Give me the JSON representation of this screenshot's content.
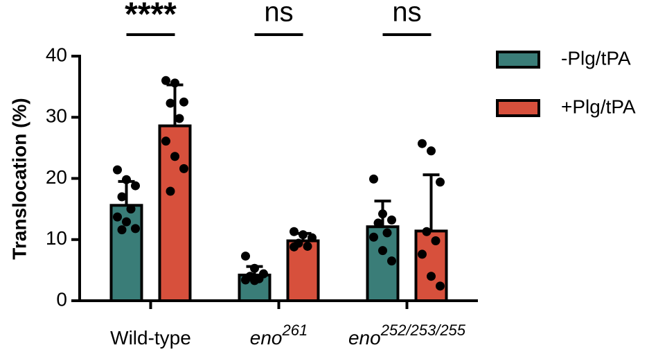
{
  "chart_data": {
    "type": "bar",
    "y_label": "Translocation (%)",
    "categories": [
      {
        "text": "Wild-type"
      },
      {
        "text": "eno",
        "sup": "261"
      },
      {
        "text": "eno",
        "sup": "252/253/255"
      }
    ],
    "significance": [
      "****",
      "ns",
      "ns"
    ],
    "series": [
      {
        "name": "-Plg/tPA",
        "color": "#3a7d78",
        "values": [
          15.6,
          4.2,
          12.1
        ],
        "errors": [
          3.9,
          1.4,
          4.2
        ],
        "points": [
          [
            21.4,
            19.8,
            18.8,
            17.0,
            15.0,
            13.7,
            12.9,
            11.8,
            11.6
          ],
          [
            7.3,
            5.3,
            4.4,
            4.0,
            3.6,
            3.4,
            3.3
          ],
          [
            19.9,
            14.2,
            13.2,
            12.7,
            11.1,
            10.4,
            8.2,
            6.5
          ]
        ]
      },
      {
        "name": "+Plg/tPA",
        "color": "#d7503c",
        "values": [
          28.6,
          9.8,
          11.4
        ],
        "errors": [
          6.7,
          1.2,
          9.2
        ],
        "points": [
          [
            36.0,
            35.6,
            32.5,
            32.3,
            29.8,
            26.1,
            23.6,
            21.6,
            17.9
          ],
          [
            11.3,
            10.8,
            10.3,
            9.4,
            8.9,
            8.8
          ],
          [
            25.7,
            24.5,
            19.4,
            11.3,
            9.8,
            7.6,
            4.0,
            2.4
          ]
        ]
      }
    ],
    "ylim": [
      0,
      40
    ],
    "yticks": [
      0,
      10,
      20,
      30,
      40
    ],
    "legend": "right"
  }
}
